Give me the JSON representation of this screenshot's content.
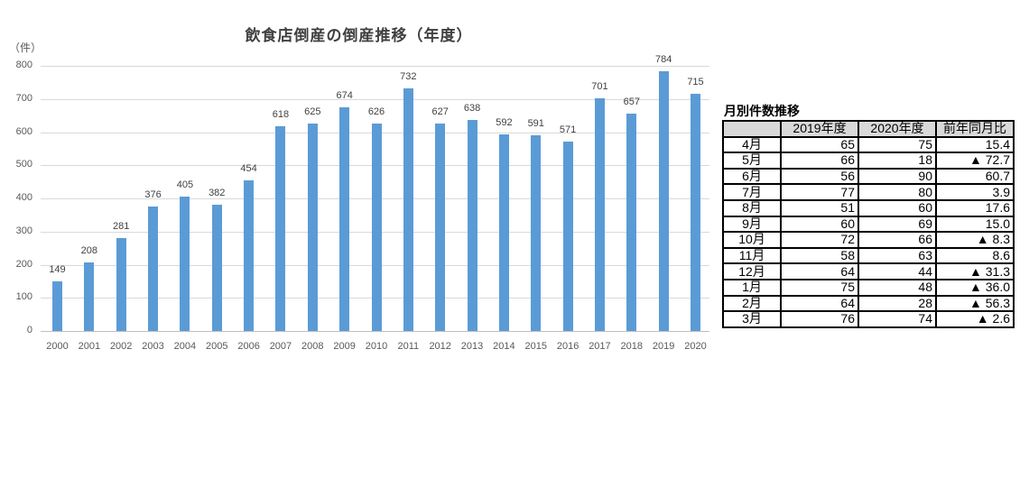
{
  "chart_data": {
    "type": "bar",
    "title": "飲食店倒産の倒産推移（年度）",
    "xlabel": "",
    "ylabel": "（件）",
    "ylim": [
      0,
      800
    ],
    "yticks": [
      0,
      100,
      200,
      300,
      400,
      500,
      600,
      700,
      800
    ],
    "grid": true,
    "legend": "none",
    "bar_color": "#5b9bd5",
    "categories": [
      "2000",
      "2001",
      "2002",
      "2003",
      "2004",
      "2005",
      "2006",
      "2007",
      "2008",
      "2009",
      "2010",
      "2011",
      "2012",
      "2013",
      "2014",
      "2015",
      "2016",
      "2017",
      "2018",
      "2019",
      "2020"
    ],
    "values": [
      149,
      208,
      281,
      376,
      405,
      382,
      454,
      618,
      625,
      674,
      626,
      732,
      627,
      638,
      592,
      591,
      571,
      701,
      657,
      784,
      715
    ]
  },
  "table": {
    "title": "月別件数推移",
    "headers": [
      "",
      "2019年度",
      "2020年度",
      "前年同月比"
    ],
    "rows": [
      {
        "month": "4月",
        "y2019": "65",
        "y2020": "75",
        "ratio": "15.4"
      },
      {
        "month": "5月",
        "y2019": "66",
        "y2020": "18",
        "ratio": "▲ 72.7"
      },
      {
        "month": "6月",
        "y2019": "56",
        "y2020": "90",
        "ratio": "60.7"
      },
      {
        "month": "7月",
        "y2019": "77",
        "y2020": "80",
        "ratio": "3.9"
      },
      {
        "month": "8月",
        "y2019": "51",
        "y2020": "60",
        "ratio": "17.6"
      },
      {
        "month": "9月",
        "y2019": "60",
        "y2020": "69",
        "ratio": "15.0"
      },
      {
        "month": "10月",
        "y2019": "72",
        "y2020": "66",
        "ratio": "▲ 8.3"
      },
      {
        "month": "11月",
        "y2019": "58",
        "y2020": "63",
        "ratio": "8.6"
      },
      {
        "month": "12月",
        "y2019": "64",
        "y2020": "44",
        "ratio": "▲ 31.3"
      },
      {
        "month": "1月",
        "y2019": "75",
        "y2020": "48",
        "ratio": "▲ 36.0"
      },
      {
        "month": "2月",
        "y2019": "64",
        "y2020": "28",
        "ratio": "▲ 56.3"
      },
      {
        "month": "3月",
        "y2019": "76",
        "y2020": "74",
        "ratio": "▲ 2.6"
      }
    ]
  }
}
